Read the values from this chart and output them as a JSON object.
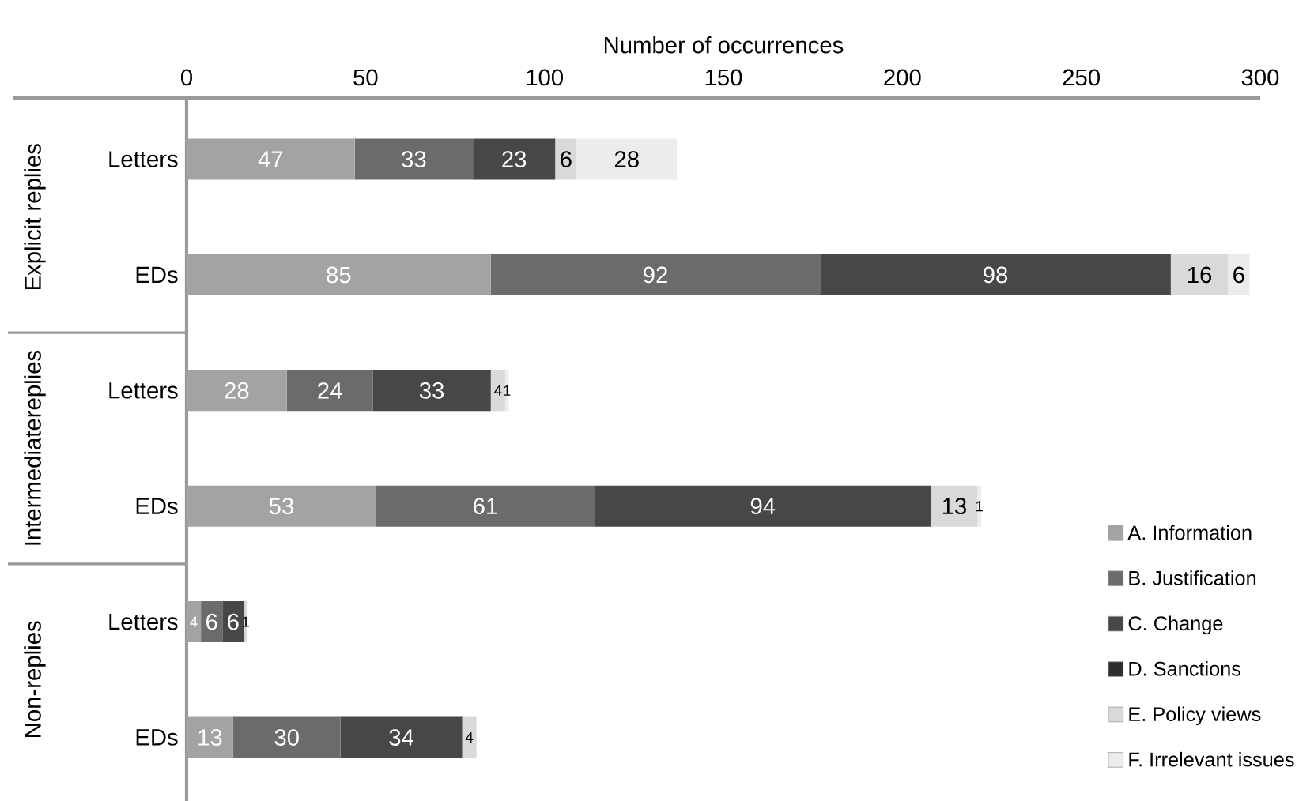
{
  "chart_data": {
    "type": "bar",
    "orientation": "horizontal",
    "stacked": true,
    "data_labels": true,
    "xlabel": "Number of occurrences",
    "categories": [
      "Letters",
      "EDs",
      "Letters",
      "EDs",
      "Letters",
      "EDs"
    ],
    "xlim": [
      0,
      300
    ],
    "xticks": [
      0,
      50,
      100,
      150,
      200,
      250,
      300
    ],
    "legend": "bottom right",
    "annotations": [
      "Explicit replies",
      "Intermediatereplies",
      "Non-replies"
    ],
    "series": [
      {
        "name": "A. Information",
        "color": "#a3a3a3",
        "values": [
          47,
          85,
          28,
          53,
          4,
          13
        ]
      },
      {
        "name": "B. Justification",
        "color": "#6b6b6b",
        "values": [
          33,
          92,
          24,
          61,
          6,
          30
        ]
      },
      {
        "name": "C. Change",
        "color": "#474747",
        "values": [
          23,
          98,
          33,
          94,
          6,
          34
        ]
      },
      {
        "name": "D. Sanctions",
        "color": "#2e2e2e",
        "values": [
          null,
          null,
          null,
          null,
          null,
          null
        ]
      },
      {
        "name": "E. Policy views",
        "color": "#d9d9d9",
        "values": [
          6,
          16,
          4,
          13,
          1,
          4
        ]
      },
      {
        "name": "F. Irrelevant issues",
        "color": "#ececec",
        "values": [
          28,
          6,
          1,
          1,
          null,
          null
        ]
      }
    ]
  }
}
